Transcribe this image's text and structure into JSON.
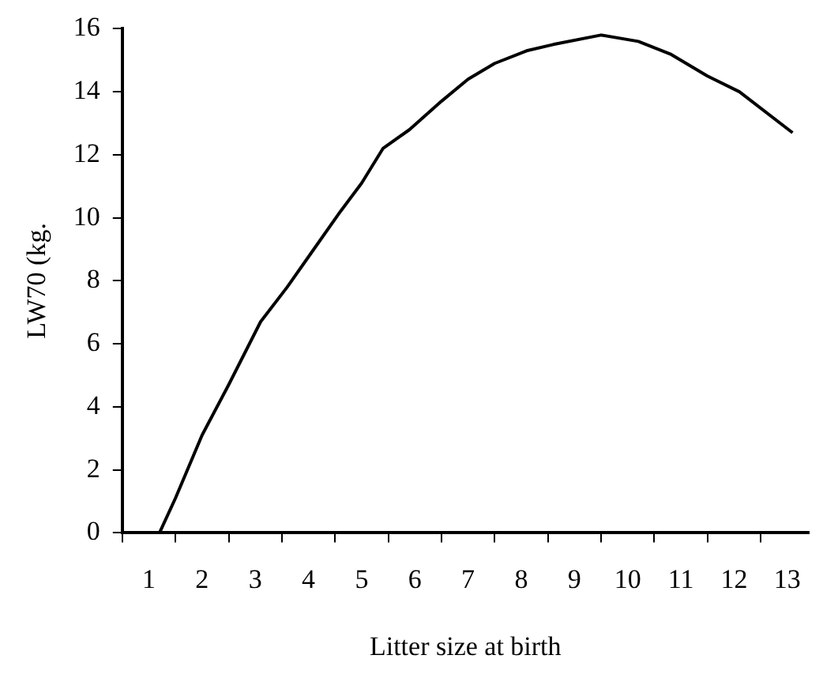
{
  "chart_data": {
    "type": "line",
    "xlabel": "Litter size at birth",
    "ylabel": "LW70 (kg.",
    "x": [
      1.2,
      1.5,
      2.0,
      2.5,
      3.1,
      3.6,
      4.1,
      4.6,
      5.0,
      5.4,
      5.9,
      6.5,
      7.0,
      7.5,
      8.1,
      8.6,
      9.5,
      10.2,
      10.8,
      11.5,
      12.1,
      13.1
    ],
    "series": [
      {
        "color": "#000000",
        "values": [
          0,
          1.1,
          3.1,
          4.7,
          6.7,
          7.8,
          9.0,
          10.2,
          11.1,
          12.2,
          12.8,
          13.7,
          14.4,
          14.9,
          15.3,
          15.5,
          15.8,
          15.6,
          15.2,
          14.5,
          14.0,
          12.7
        ]
      }
    ],
    "xlim": [
      0.5,
      13.4
    ],
    "xticks": [
      {
        "value": 0.5,
        "label": null
      },
      1,
      {
        "value": 1.5,
        "label": null
      },
      2,
      {
        "value": 2.5,
        "label": null
      },
      3,
      {
        "value": 3.5,
        "label": null
      },
      4,
      {
        "value": 4.5,
        "label": null
      },
      5,
      {
        "value": 5.5,
        "label": null
      },
      6,
      {
        "value": 6.5,
        "label": null
      },
      7,
      {
        "value": 7.5,
        "label": null
      },
      8,
      {
        "value": 8.5,
        "label": null
      },
      9,
      {
        "value": 9.5,
        "label": null
      },
      10,
      {
        "value": 10.5,
        "label": null
      },
      11,
      {
        "value": 11.5,
        "label": null
      },
      12,
      {
        "value": 12.5,
        "label": null
      },
      13
    ],
    "ylim": [
      0,
      16
    ],
    "yticks": [
      0,
      2,
      4,
      6,
      8,
      10,
      12,
      14,
      16
    ],
    "grid": false,
    "legend": false,
    "marker": "none",
    "line_style": "solid"
  }
}
